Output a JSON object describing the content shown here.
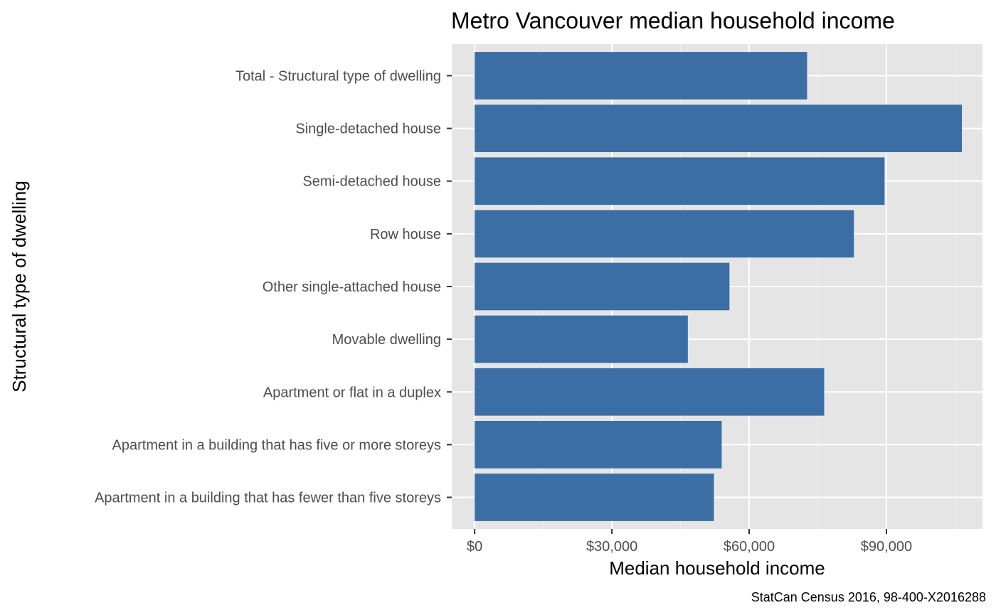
{
  "chart_data": {
    "type": "bar",
    "orientation": "horizontal",
    "title": "Metro Vancouver median household income",
    "xlabel": "Median household income",
    "ylabel": "Structural type of dwelling",
    "caption": "StatCan Census 2016, 98-400-X2016288",
    "categories": [
      "Total - Structural type of dwelling",
      "Single-detached house",
      "Semi-detached house",
      "Row house",
      "Other single-attached house",
      "Movable dwelling",
      "Apartment or flat in a duplex",
      "Apartment in a building that has five or more storeys",
      "Apartment in a building that has fewer than five storeys"
    ],
    "values": [
      72662,
      106500,
      89600,
      82900,
      55700,
      46600,
      76400,
      54000,
      52300
    ],
    "xlim": [
      -5000,
      111000
    ],
    "x_ticks": [
      0,
      30000,
      60000,
      90000
    ],
    "x_tick_labels": [
      "$0",
      "$30,000",
      "$60,000",
      "$90,000"
    ],
    "grid": true,
    "legend": "none",
    "colors": {
      "bar": "#3a6ea5",
      "panel_background": "#e5e5e5",
      "grid_major": "#ffffff",
      "grid_minor": "#f0f0f0",
      "tick_label": "#4d4d4d",
      "tick_mark": "#333333"
    }
  }
}
